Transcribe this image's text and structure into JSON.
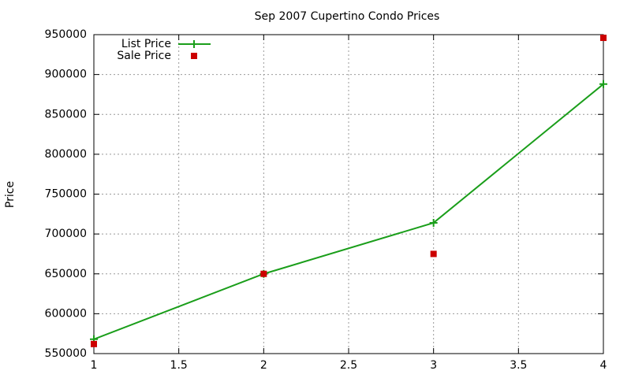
{
  "chart_data": {
    "type": "line",
    "title": "Sep 2007 Cupertino Condo Prices",
    "ylabel": "Price",
    "x": [
      1,
      2,
      3,
      4
    ],
    "series": [
      {
        "name": "List Price",
        "color": "#1a9e1a",
        "mode": "linespoints",
        "marker": "plus",
        "values": [
          568000,
          650000,
          714000,
          888000
        ]
      },
      {
        "name": "Sale Price",
        "color": "#cc0000",
        "mode": "points",
        "marker": "square",
        "values": [
          562000,
          650000,
          675000,
          946000
        ]
      }
    ],
    "xlim": [
      1,
      4
    ],
    "xticks": [
      1,
      1.5,
      2,
      2.5,
      3,
      3.5,
      4
    ],
    "ylim": [
      550000,
      950000
    ],
    "yticks": [
      550000,
      600000,
      650000,
      700000,
      750000,
      800000,
      850000,
      900000,
      950000
    ],
    "grid": true,
    "legend": "top-left"
  }
}
